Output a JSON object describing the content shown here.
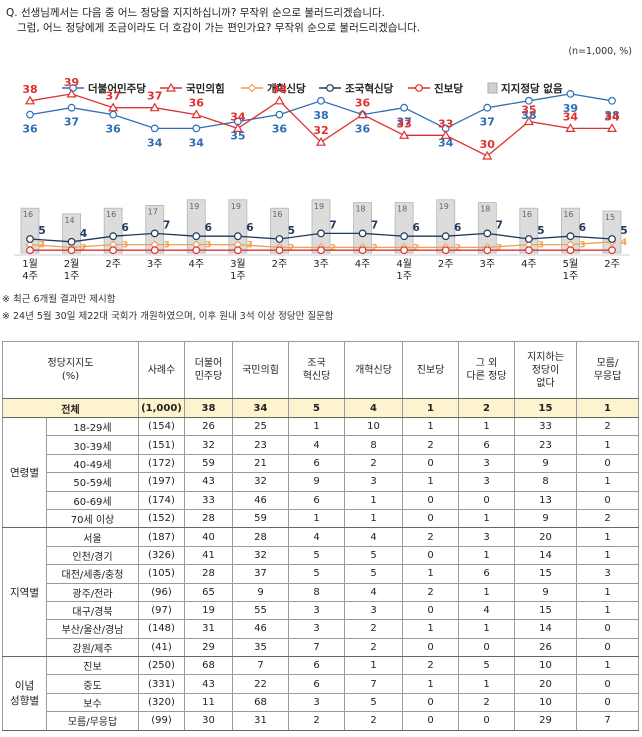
{
  "question": {
    "line1": "Q. 선생님께서는 다음 중 어느 정당을 지지하십니까? 무작위 순으로 불러드리겠습니다.",
    "line2": "그럼, 어느 정당에게 조금이라도 더 호감이 가는 편인가요? 무작위 순으로 불러드리겠습니다."
  },
  "unit_note": "(n=1,000, %)",
  "notes": [
    "※ 최근 6개월 결과만 제시함",
    "※ 24년 5월 30일 제22대 국회가 개원하였으며, 이후 원내 3석 이상 정당만 질문함"
  ],
  "chart_data": {
    "type": "line",
    "x": [
      "1월 4주",
      "2월 1주",
      "2주",
      "3주",
      "4주",
      "3월 1주",
      "2주",
      "3주",
      "4주",
      "4월 1주",
      "2주",
      "3주",
      "4주",
      "5월 1주",
      "2주"
    ],
    "x_top": [
      "1월",
      "2월",
      "2주",
      "3주",
      "4주",
      "3월",
      "2주",
      "3주",
      "4주",
      "4월",
      "2주",
      "3주",
      "4주",
      "5월",
      "2주"
    ],
    "x_bottom": [
      "4주",
      "1주",
      "",
      "",
      "",
      "1주",
      "",
      "",
      "",
      "1주",
      "",
      "",
      "",
      "1주",
      ""
    ],
    "legend": [
      "더불어민주당",
      "국민의힘",
      "개혁신당",
      "조국혁신당",
      "진보당",
      "지지정당 없음"
    ],
    "series": [
      {
        "name": "더불어민주당",
        "color": "#2e6fb5",
        "marker": "circle",
        "values": [
          36,
          37,
          36,
          34,
          34,
          35,
          36,
          38,
          36,
          37,
          34,
          37,
          38,
          39,
          38
        ]
      },
      {
        "name": "국민의힘",
        "color": "#e03030",
        "marker": "triangle",
        "values": [
          38,
          39,
          37,
          37,
          36,
          34,
          38,
          32,
          36,
          33,
          33,
          30,
          35,
          34,
          34
        ]
      },
      {
        "name": "개혁신당",
        "color": "#f0a04b",
        "marker": "diamond",
        "values": [
          3,
          2,
          3,
          3,
          3,
          3,
          2,
          2,
          2,
          2,
          2,
          2,
          3,
          3,
          4
        ]
      },
      {
        "name": "조국혁신당",
        "color": "#1f3a5c",
        "marker": "circle",
        "values": [
          5,
          4,
          6,
          7,
          6,
          6,
          5,
          7,
          7,
          6,
          6,
          7,
          5,
          6,
          5
        ]
      },
      {
        "name": "진보당",
        "color": "#e03030",
        "marker": "circle",
        "values": [
          1,
          1,
          1,
          1,
          1,
          1,
          1,
          1,
          1,
          1,
          1,
          1,
          1,
          1,
          1
        ]
      }
    ],
    "bars": {
      "name": "지지정당 없음",
      "color": "#d0d0d0",
      "values": [
        16,
        14,
        16,
        17,
        19,
        19,
        16,
        19,
        18,
        18,
        19,
        18,
        16,
        16,
        15
      ]
    }
  },
  "table": {
    "headers": [
      "정당지지도\n(%)",
      "사례수",
      "더불어\n민주당",
      "국민의힘",
      "조국\n혁신당",
      "개혁신당",
      "진보당",
      "그 외\n다른 정당",
      "지지하는\n정당이\n없다",
      "모름/\n무응답"
    ],
    "total": {
      "label": "전체",
      "n": "(1,000)",
      "vals": [
        "38",
        "34",
        "5",
        "4",
        "1",
        "2",
        "15",
        "1"
      ]
    },
    "groups": [
      {
        "name": "연령별",
        "rows": [
          {
            "label": "18-29세",
            "n": "(154)",
            "vals": [
              "26",
              "25",
              "1",
              "10",
              "1",
              "1",
              "33",
              "2"
            ]
          },
          {
            "label": "30-39세",
            "n": "(151)",
            "vals": [
              "32",
              "23",
              "4",
              "8",
              "2",
              "6",
              "23",
              "1"
            ]
          },
          {
            "label": "40-49세",
            "n": "(172)",
            "vals": [
              "59",
              "21",
              "6",
              "2",
              "0",
              "3",
              "9",
              "0"
            ]
          },
          {
            "label": "50-59세",
            "n": "(197)",
            "vals": [
              "43",
              "32",
              "9",
              "3",
              "1",
              "3",
              "8",
              "1"
            ]
          },
          {
            "label": "60-69세",
            "n": "(174)",
            "vals": [
              "33",
              "46",
              "6",
              "1",
              "0",
              "0",
              "13",
              "0"
            ]
          },
          {
            "label": "70세 이상",
            "n": "(152)",
            "vals": [
              "28",
              "59",
              "1",
              "1",
              "0",
              "1",
              "9",
              "2"
            ]
          }
        ]
      },
      {
        "name": "지역별",
        "rows": [
          {
            "label": "서울",
            "n": "(187)",
            "vals": [
              "40",
              "28",
              "4",
              "4",
              "2",
              "3",
              "20",
              "1"
            ]
          },
          {
            "label": "인천/경기",
            "n": "(326)",
            "vals": [
              "41",
              "32",
              "5",
              "5",
              "0",
              "1",
              "14",
              "1"
            ]
          },
          {
            "label": "대전/세종/충청",
            "n": "(105)",
            "vals": [
              "28",
              "37",
              "5",
              "5",
              "1",
              "6",
              "15",
              "3"
            ]
          },
          {
            "label": "광주/전라",
            "n": "(96)",
            "vals": [
              "65",
              "9",
              "8",
              "4",
              "2",
              "1",
              "9",
              "1"
            ]
          },
          {
            "label": "대구/경북",
            "n": "(97)",
            "vals": [
              "19",
              "55",
              "3",
              "3",
              "0",
              "4",
              "15",
              "1"
            ]
          },
          {
            "label": "부산/울산/경남",
            "n": "(148)",
            "vals": [
              "31",
              "46",
              "3",
              "2",
              "1",
              "1",
              "14",
              "0"
            ]
          },
          {
            "label": "강원/제주",
            "n": "(41)",
            "vals": [
              "29",
              "35",
              "7",
              "2",
              "0",
              "0",
              "26",
              "0"
            ]
          }
        ]
      },
      {
        "name": "이념\n성향별",
        "rows": [
          {
            "label": "진보",
            "n": "(250)",
            "vals": [
              "68",
              "7",
              "6",
              "1",
              "2",
              "5",
              "10",
              "1"
            ]
          },
          {
            "label": "중도",
            "n": "(331)",
            "vals": [
              "43",
              "22",
              "6",
              "7",
              "1",
              "1",
              "20",
              "0"
            ]
          },
          {
            "label": "보수",
            "n": "(320)",
            "vals": [
              "11",
              "68",
              "3",
              "5",
              "0",
              "2",
              "10",
              "0"
            ]
          },
          {
            "label": "모름/무응답",
            "n": "(99)",
            "vals": [
              "30",
              "31",
              "2",
              "2",
              "0",
              "0",
              "29",
              "7"
            ]
          }
        ]
      }
    ]
  }
}
